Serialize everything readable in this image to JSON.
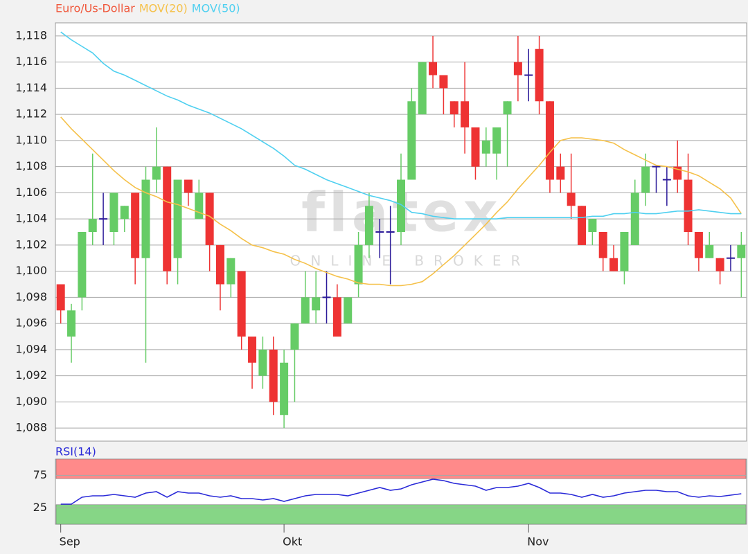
{
  "watermark": {
    "logo": "flatex",
    "tagline": "ONLINE BROKER"
  },
  "chart_data": [
    {
      "type": "candlestick",
      "series": [
        {
          "name": "Euro/Us-Dollar",
          "color": "#f0583c",
          "up_color": "#66cc66",
          "down_color": "#ee3333",
          "doji_color": "#2b1a99",
          "open": [
            1.099,
            1.095,
            1.098,
            1.103,
            1.104,
            1.103,
            1.104,
            1.106,
            1.101,
            1.107,
            1.108,
            1.101,
            1.107,
            1.104,
            1.106,
            1.102,
            1.099,
            1.1,
            1.095,
            1.092,
            1.094,
            1.089,
            1.094,
            1.096,
            1.097,
            1.098,
            1.098,
            1.096,
            1.099,
            1.102,
            1.103,
            1.103,
            1.103,
            1.107,
            1.112,
            1.116,
            1.115,
            1.113,
            1.113,
            1.111,
            1.109,
            1.109,
            1.112,
            1.116,
            1.115,
            1.117,
            1.113,
            1.108,
            1.106,
            1.105,
            1.103,
            1.103,
            1.101,
            1.1,
            1.102,
            1.106,
            1.108,
            1.107,
            1.108,
            1.107,
            1.103,
            1.101,
            1.101,
            1.101,
            1.101
          ],
          "high": [
            1.099,
            1.0975,
            1.103,
            1.109,
            1.106,
            1.106,
            1.105,
            1.106,
            1.108,
            1.111,
            1.108,
            1.107,
            1.107,
            1.107,
            1.106,
            1.102,
            1.101,
            1.1,
            1.095,
            1.095,
            1.095,
            1.094,
            1.096,
            1.1,
            1.1,
            1.1,
            1.099,
            1.098,
            1.103,
            1.106,
            1.104,
            1.105,
            1.109,
            1.114,
            1.116,
            1.118,
            1.115,
            1.113,
            1.116,
            1.111,
            1.111,
            1.111,
            1.113,
            1.118,
            1.117,
            1.118,
            1.113,
            1.109,
            1.109,
            1.105,
            1.104,
            1.103,
            1.102,
            1.103,
            1.107,
            1.109,
            1.108,
            1.108,
            1.11,
            1.109,
            1.103,
            1.103,
            1.101,
            1.102,
            1.103
          ],
          "low": [
            1.096,
            1.093,
            1.097,
            1.102,
            1.102,
            1.102,
            1.103,
            1.099,
            1.093,
            1.106,
            1.099,
            1.099,
            1.105,
            1.104,
            1.1,
            1.097,
            1.098,
            1.094,
            1.091,
            1.091,
            1.089,
            1.088,
            1.09,
            1.096,
            1.096,
            1.096,
            1.095,
            1.096,
            1.098,
            1.101,
            1.101,
            1.099,
            1.102,
            1.107,
            1.112,
            1.114,
            1.112,
            1.111,
            1.109,
            1.107,
            1.108,
            1.107,
            1.108,
            1.113,
            1.113,
            1.112,
            1.106,
            1.106,
            1.104,
            1.102,
            1.102,
            1.1,
            1.1,
            1.099,
            1.102,
            1.105,
            1.106,
            1.105,
            1.106,
            1.102,
            1.1,
            1.101,
            1.099,
            1.1,
            1.098
          ],
          "close": [
            1.097,
            1.097,
            1.103,
            1.104,
            1.104,
            1.106,
            1.105,
            1.101,
            1.107,
            1.108,
            1.1,
            1.107,
            1.106,
            1.106,
            1.102,
            1.099,
            1.101,
            1.095,
            1.093,
            1.094,
            1.09,
            1.093,
            1.096,
            1.098,
            1.098,
            1.098,
            1.095,
            1.098,
            1.102,
            1.105,
            1.103,
            1.103,
            1.107,
            1.113,
            1.116,
            1.115,
            1.114,
            1.112,
            1.111,
            1.108,
            1.11,
            1.111,
            1.113,
            1.115,
            1.115,
            1.113,
            1.107,
            1.107,
            1.105,
            1.102,
            1.104,
            1.101,
            1.1,
            1.103,
            1.106,
            1.108,
            1.108,
            1.107,
            1.107,
            1.103,
            1.101,
            1.102,
            1.1,
            1.101,
            1.102
          ]
        },
        {
          "name": "MOV(20)",
          "type": "line",
          "color": "#f5c14a",
          "values": [
            1.1118,
            1.1109,
            1.1101,
            1.1093,
            1.1085,
            1.1077,
            1.107,
            1.1064,
            1.106,
            1.1057,
            1.1053,
            1.1051,
            1.1048,
            1.1045,
            1.1042,
            1.1036,
            1.1031,
            1.1025,
            1.102,
            1.1018,
            1.1015,
            1.1013,
            1.1009,
            1.1006,
            1.1002,
            1.0999,
            1.0996,
            1.0994,
            1.0991,
            1.099,
            1.099,
            1.0989,
            1.0989,
            1.099,
            1.0992,
            1.0998,
            1.1005,
            1.1012,
            1.102,
            1.1028,
            1.1036,
            1.1045,
            1.1053,
            1.1063,
            1.1072,
            1.1081,
            1.1091,
            1.11,
            1.1102,
            1.1102,
            1.1101,
            1.11,
            1.1098,
            1.1093,
            1.1089,
            1.1085,
            1.1081,
            1.108,
            1.1078,
            1.1076,
            1.1073,
            1.1068,
            1.1063,
            1.1056,
            1.1044
          ]
        },
        {
          "name": "MOV(50)",
          "type": "line",
          "color": "#4fd0f0",
          "values": [
            1.1183,
            1.1177,
            1.1172,
            1.1167,
            1.1159,
            1.1153,
            1.115,
            1.1146,
            1.1142,
            1.1138,
            1.1134,
            1.1131,
            1.1127,
            1.1124,
            1.1121,
            1.1117,
            1.1113,
            1.1109,
            1.1104,
            1.1099,
            1.1094,
            1.1088,
            1.1081,
            1.1078,
            1.1074,
            1.107,
            1.1067,
            1.1064,
            1.1061,
            1.1058,
            1.1056,
            1.1054,
            1.1051,
            1.1045,
            1.1044,
            1.1042,
            1.1041,
            1.104,
            1.104,
            1.104,
            1.104,
            1.104,
            1.1041,
            1.1041,
            1.1041,
            1.1041,
            1.1041,
            1.1041,
            1.1041,
            1.1041,
            1.1042,
            1.1042,
            1.1044,
            1.1044,
            1.1045,
            1.1044,
            1.1044,
            1.1045,
            1.1046,
            1.1046,
            1.1047,
            1.1046,
            1.1045,
            1.1044,
            1.1044
          ]
        }
      ],
      "ylim": [
        1.087,
        1.119
      ],
      "yticks": [
        {
          "value": 1.088,
          "label": "1,088"
        },
        {
          "value": 1.09,
          "label": "1,090"
        },
        {
          "value": 1.092,
          "label": "1,092"
        },
        {
          "value": 1.094,
          "label": "1,094"
        },
        {
          "value": 1.096,
          "label": "1,096"
        },
        {
          "value": 1.098,
          "label": "1,098"
        },
        {
          "value": 1.1,
          "label": "1,100"
        },
        {
          "value": 1.102,
          "label": "1,102"
        },
        {
          "value": 1.104,
          "label": "1,104"
        },
        {
          "value": 1.106,
          "label": "1,106"
        },
        {
          "value": 1.108,
          "label": "1,108"
        },
        {
          "value": 1.11,
          "label": "1,110"
        },
        {
          "value": 1.112,
          "label": "1,112"
        },
        {
          "value": 1.114,
          "label": "1,114"
        },
        {
          "value": 1.116,
          "label": "1,116"
        },
        {
          "value": 1.118,
          "label": "1,118"
        }
      ],
      "grid": true,
      "legend": "top-left"
    },
    {
      "type": "line",
      "categories": [
        "Sep",
        null,
        null,
        null,
        null,
        null,
        null,
        null,
        null,
        null,
        null,
        null,
        null,
        null,
        null,
        null,
        null,
        null,
        null,
        null,
        null,
        "Okt",
        null,
        null,
        null,
        null,
        null,
        null,
        null,
        null,
        null,
        null,
        null,
        null,
        null,
        null,
        null,
        null,
        null,
        null,
        null,
        null,
        null,
        null,
        "Nov",
        null,
        null,
        null,
        null,
        null,
        null,
        null,
        null,
        null,
        null,
        null,
        null,
        null,
        null,
        null,
        null,
        null,
        null,
        null,
        null
      ],
      "series": [
        {
          "name": "RSI(14)",
          "color": "#2a2ad8",
          "values": [
            30.9,
            30.9,
            41.5,
            43.6,
            43.6,
            45.7,
            43.6,
            41.5,
            47.9,
            50.0,
            41.5,
            50.0,
            47.9,
            47.9,
            43.6,
            41.5,
            43.6,
            39.4,
            39.4,
            37.2,
            39.4,
            35.1,
            39.4,
            43.6,
            45.7,
            45.7,
            45.7,
            43.6,
            47.9,
            52.1,
            56.4,
            52.1,
            54.3,
            60.6,
            64.9,
            69.1,
            67.0,
            62.8,
            60.6,
            58.5,
            52.1,
            56.4,
            56.4,
            58.5,
            62.8,
            56.4,
            47.9,
            47.9,
            45.7,
            41.5,
            45.7,
            41.5,
            43.6,
            47.9,
            50.0,
            52.1,
            52.1,
            50.0,
            50.0,
            43.6,
            41.5,
            43.6,
            42.6,
            44.7,
            46.8
          ]
        }
      ],
      "ylim": [
        0,
        100
      ],
      "yticks": [
        25,
        75
      ],
      "grid": true,
      "bands": [
        {
          "from": 70,
          "to": 100,
          "color": "#ff8a8a"
        },
        {
          "from": 0,
          "to": 30,
          "color": "#86d686"
        }
      ]
    }
  ]
}
